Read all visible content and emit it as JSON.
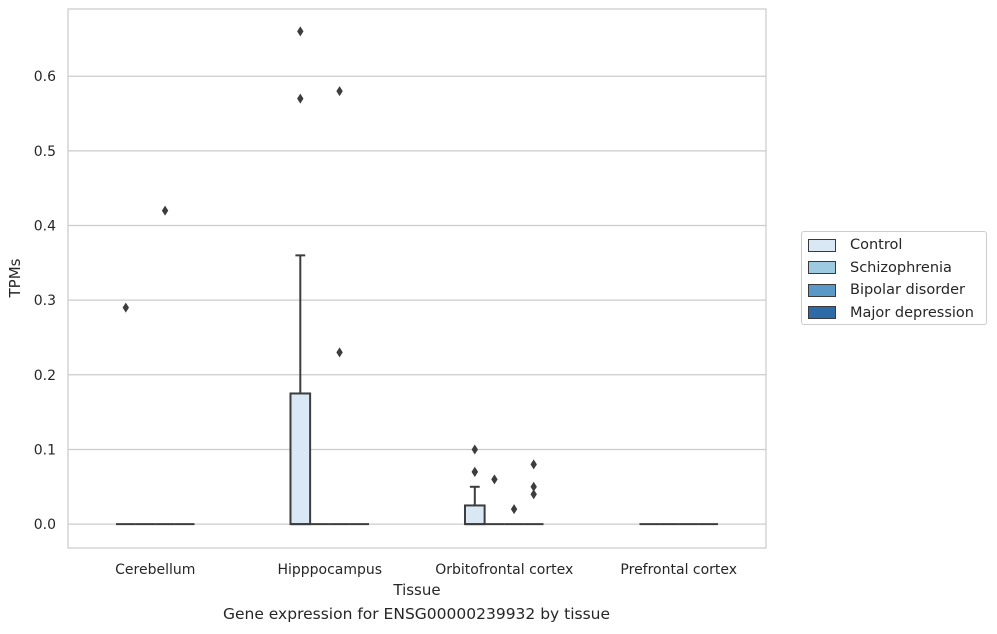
{
  "chart_data": {
    "type": "box",
    "title": "",
    "caption": "Gene expression for ENSG00000239932 by tissue",
    "xlabel": "Tissue",
    "ylabel": "TPMs",
    "ylim": [
      -0.032,
      0.69
    ],
    "yticks": [
      0.0,
      0.1,
      0.2,
      0.3,
      0.4,
      0.5,
      0.6
    ],
    "ytick_labels": [
      "0.0",
      "0.1",
      "0.2",
      "0.3",
      "0.4",
      "0.5",
      "0.6"
    ],
    "grid": true,
    "legend_position": "right",
    "categories": [
      "Cerebellum",
      "Hipppocampus",
      "Orbitofrontal cortex",
      "Prefrontal cortex"
    ],
    "series": [
      {
        "name": "Control",
        "color": "#dae8f5",
        "boxes": [
          {
            "q1": 0,
            "median": 0,
            "q3": 0,
            "whisker_low": 0,
            "whisker_high": 0,
            "outliers": [
              0.29
            ]
          },
          {
            "q1": 0,
            "median": 0,
            "q3": 0.175,
            "whisker_low": 0,
            "whisker_high": 0.36,
            "outliers": [
              0.57,
              0.66
            ]
          },
          {
            "q1": 0,
            "median": 0,
            "q3": 0.025,
            "whisker_low": 0,
            "whisker_high": 0.05,
            "outliers": [
              0.07,
              0.07,
              0.1
            ]
          },
          {
            "q1": 0,
            "median": 0,
            "q3": 0,
            "whisker_low": 0,
            "whisker_high": 0,
            "outliers": []
          }
        ]
      },
      {
        "name": "Schizophrenia",
        "color": "#9ecae1",
        "boxes": [
          {
            "q1": 0,
            "median": 0,
            "q3": 0,
            "whisker_low": 0,
            "whisker_high": 0,
            "outliers": []
          },
          {
            "q1": 0,
            "median": 0,
            "q3": 0,
            "whisker_low": 0,
            "whisker_high": 0,
            "outliers": []
          },
          {
            "q1": 0,
            "median": 0,
            "q3": 0,
            "whisker_low": 0,
            "whisker_high": 0,
            "outliers": [
              0.06
            ]
          },
          {
            "q1": 0,
            "median": 0,
            "q3": 0,
            "whisker_low": 0,
            "whisker_high": 0,
            "outliers": []
          }
        ]
      },
      {
        "name": "Bipolar disorder",
        "color": "#5a98c8",
        "boxes": [
          {
            "q1": 0,
            "median": 0,
            "q3": 0,
            "whisker_low": 0,
            "whisker_high": 0,
            "outliers": [
              0.42
            ]
          },
          {
            "q1": 0,
            "median": 0,
            "q3": 0,
            "whisker_low": 0,
            "whisker_high": 0,
            "outliers": [
              0.23,
              0.58
            ]
          },
          {
            "q1": 0,
            "median": 0,
            "q3": 0,
            "whisker_low": 0,
            "whisker_high": 0,
            "outliers": [
              0.02
            ]
          },
          {
            "q1": 0,
            "median": 0,
            "q3": 0,
            "whisker_low": 0,
            "whisker_high": 0,
            "outliers": []
          }
        ]
      },
      {
        "name": "Major depression",
        "color": "#2d6aa8",
        "boxes": [
          {
            "q1": 0,
            "median": 0,
            "q3": 0,
            "whisker_low": 0,
            "whisker_high": 0,
            "outliers": []
          },
          {
            "q1": 0,
            "median": 0,
            "q3": 0,
            "whisker_low": 0,
            "whisker_high": 0,
            "outliers": []
          },
          {
            "q1": 0,
            "median": 0,
            "q3": 0,
            "whisker_low": 0,
            "whisker_high": 0,
            "outliers": [
              0.04,
              0.05,
              0.08
            ]
          },
          {
            "q1": 0,
            "median": 0,
            "q3": 0,
            "whisker_low": 0,
            "whisker_high": 0,
            "outliers": []
          }
        ]
      }
    ]
  }
}
